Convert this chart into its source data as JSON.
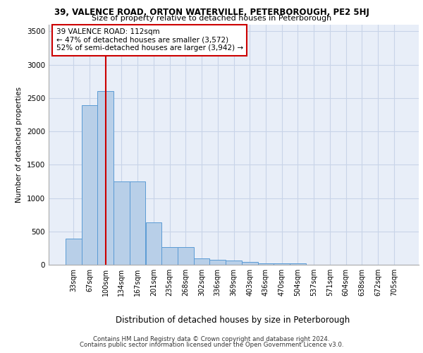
{
  "title_line1": "39, VALENCE ROAD, ORTON WATERVILLE, PETERBOROUGH, PE2 5HJ",
  "title_line2": "Size of property relative to detached houses in Peterborough",
  "xlabel": "Distribution of detached houses by size in Peterborough",
  "ylabel": "Number of detached properties",
  "bin_labels": [
    "33sqm",
    "67sqm",
    "100sqm",
    "134sqm",
    "167sqm",
    "201sqm",
    "235sqm",
    "268sqm",
    "302sqm",
    "336sqm",
    "369sqm",
    "403sqm",
    "436sqm",
    "470sqm",
    "504sqm",
    "537sqm",
    "571sqm",
    "604sqm",
    "638sqm",
    "672sqm",
    "705sqm"
  ],
  "bar_values": [
    390,
    2390,
    2600,
    1250,
    1250,
    640,
    260,
    260,
    100,
    70,
    60,
    40,
    20,
    20,
    20,
    0,
    0,
    0,
    0,
    0,
    0
  ],
  "bar_color": "#b8cfe8",
  "bar_edge_color": "#5b9bd5",
  "grid_color": "#c8d4e8",
  "background_color": "#e8eef8",
  "vline_color": "#cc0000",
  "annotation_text": "39 VALENCE ROAD: 112sqm\n← 47% of detached houses are smaller (3,572)\n52% of semi-detached houses are larger (3,942) →",
  "annotation_box_color": "#ffffff",
  "annotation_box_edge": "#cc0000",
  "ylim": [
    0,
    3600
  ],
  "yticks": [
    0,
    500,
    1000,
    1500,
    2000,
    2500,
    3000,
    3500
  ],
  "footer_line1": "Contains HM Land Registry data © Crown copyright and database right 2024.",
  "footer_line2": "Contains public sector information licensed under the Open Government Licence v3.0."
}
